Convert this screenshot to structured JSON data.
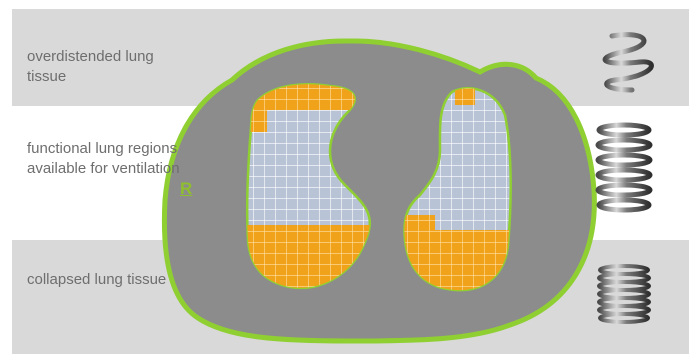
{
  "labels": {
    "overdistended": "overdistended lung tissue",
    "functional": "functional lung regions available for ventilation",
    "collapsed": "collapsed lung tissue",
    "side_marker": "R"
  },
  "colors": {
    "band_gray": "#d9d9d9",
    "body_gray": "#8c8c8c",
    "outline_green": "#8fcf32",
    "functional_blue": "#b9c3d6",
    "affected_orange": "#f0a21a",
    "label_text": "#6e6e6e"
  },
  "icons": [
    "loose-spring-icon",
    "medium-spring-icon",
    "compressed-spring-icon"
  ]
}
